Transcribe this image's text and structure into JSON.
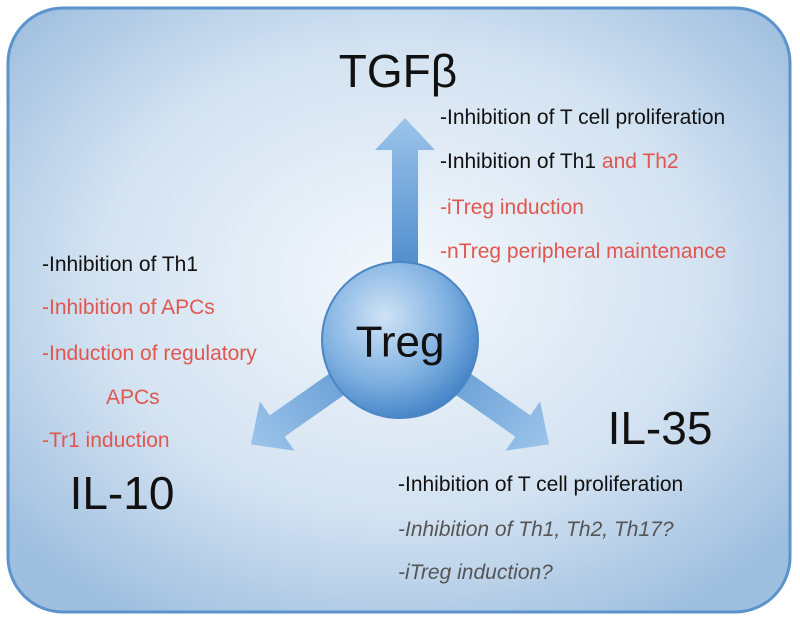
{
  "center": {
    "label": "Treg"
  },
  "branches": [
    {
      "label": "TGFβ",
      "lines": [
        [
          {
            "text": "-Inhibition of T cell proliferation",
            "color": "#111111"
          }
        ],
        [
          {
            "text": "-Inhibition of Th1 ",
            "color": "#111111"
          },
          {
            "text": "and Th2",
            "color": "#e0574f"
          }
        ],
        [
          {
            "text": "-iTreg induction",
            "color": "#e0574f"
          }
        ],
        [
          {
            "text": "-nTreg peripheral maintenance",
            "color": "#e0574f"
          }
        ]
      ]
    },
    {
      "label": "IL-10",
      "lines": [
        [
          {
            "text": "-Inhibition of Th1",
            "color": "#111111"
          }
        ],
        [
          {
            "text": "-Inhibition of APCs",
            "color": "#e0574f"
          }
        ],
        [
          {
            "text": "-Induction of regulatory",
            "color": "#e0574f"
          }
        ],
        [
          {
            "text": "APCs",
            "color": "#e0574f"
          }
        ],
        [
          {
            "text": "-Tr1 induction",
            "color": "#e0574f"
          }
        ]
      ]
    },
    {
      "label": "IL-35",
      "lines": [
        [
          {
            "text": "-Inhibition of T cell proliferation",
            "color": "#111111"
          }
        ],
        [
          {
            "text": "-Inhibition of Th1, Th2, Th17?",
            "color": "#555555",
            "italic": true
          }
        ],
        [
          {
            "text": "-iTreg induction?",
            "color": "#555555",
            "italic": true
          }
        ]
      ]
    }
  ]
}
